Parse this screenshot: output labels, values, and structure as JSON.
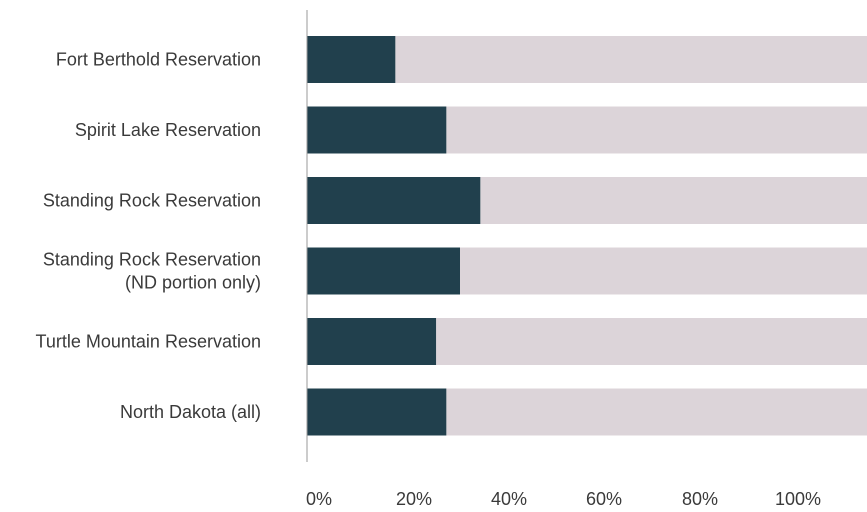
{
  "chart_data": {
    "type": "bar",
    "orientation": "horizontal",
    "stacked_to_100": true,
    "categories": [
      [
        "Fort Berthold Reservation"
      ],
      [
        "Spirit Lake Reservation"
      ],
      [
        "Standing Rock Reservation"
      ],
      [
        "Standing Rock Reservation",
        "(ND portion only)"
      ],
      [
        "Turtle Mountain Reservation"
      ],
      [
        "North Dakota (all)"
      ]
    ],
    "series": [
      {
        "values": [
          13,
          20.5,
          25.5,
          22.5,
          19,
          20.5
        ]
      },
      {
        "values": [
          87,
          79.5,
          74.5,
          77.5,
          81,
          79.5
        ]
      }
    ],
    "x_ticks": [
      "0%",
      "20%",
      "40%",
      "60%",
      "80%",
      "100%"
    ],
    "xlim": [
      0,
      100
    ],
    "grid": false,
    "legend": "none",
    "colors": {
      "primary": "#21404d",
      "remainder": "#dcd4d9",
      "axis": "#9a9a9a",
      "text": "#3a3a3a"
    }
  }
}
